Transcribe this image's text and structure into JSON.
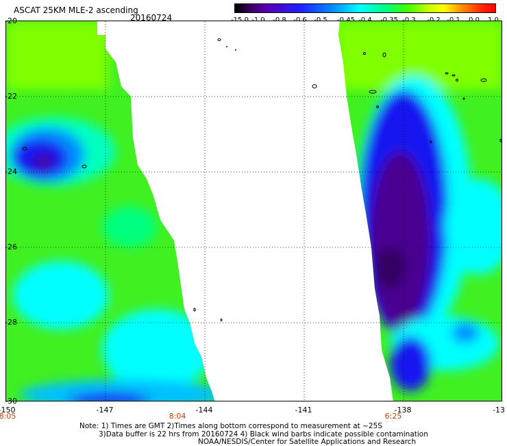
{
  "header": {
    "title": "ASCAT 25KM MLE-2 ascending",
    "date": "20160724"
  },
  "colorbar": {
    "labels": [
      "-15.0",
      "-1.0",
      "-0.8",
      "-0.6",
      "-0.5",
      "-0.45",
      "-0.4",
      "-0.35",
      "-0.3",
      "-0.2",
      "-0.1",
      "0.0",
      "1.0"
    ]
  },
  "axes": {
    "y_ticks": [
      "-20",
      "-22",
      "-24",
      "-26",
      "-28",
      "-30"
    ],
    "x_ticks": [
      "-150",
      "-147",
      "-144",
      "-141",
      "-138",
      "-13"
    ],
    "times": [
      "8:05",
      "8:04",
      "6:25"
    ]
  },
  "notes": {
    "line1": "Note: 1) Times are GMT 2)Times along bottom correspond to measurement at ~25S",
    "line2": "3)Data buffer is 22 hrs from 20160724 4) Black wind barbs indicate possible contamination",
    "line3": "NOAA/NESDIS/Center for Satellite Applications and Research"
  },
  "colors": {
    "violet": "#4a0090",
    "blue": "#1818f0",
    "cyan": "#00eeee",
    "green": "#40f020",
    "lime": "#80ff00"
  }
}
